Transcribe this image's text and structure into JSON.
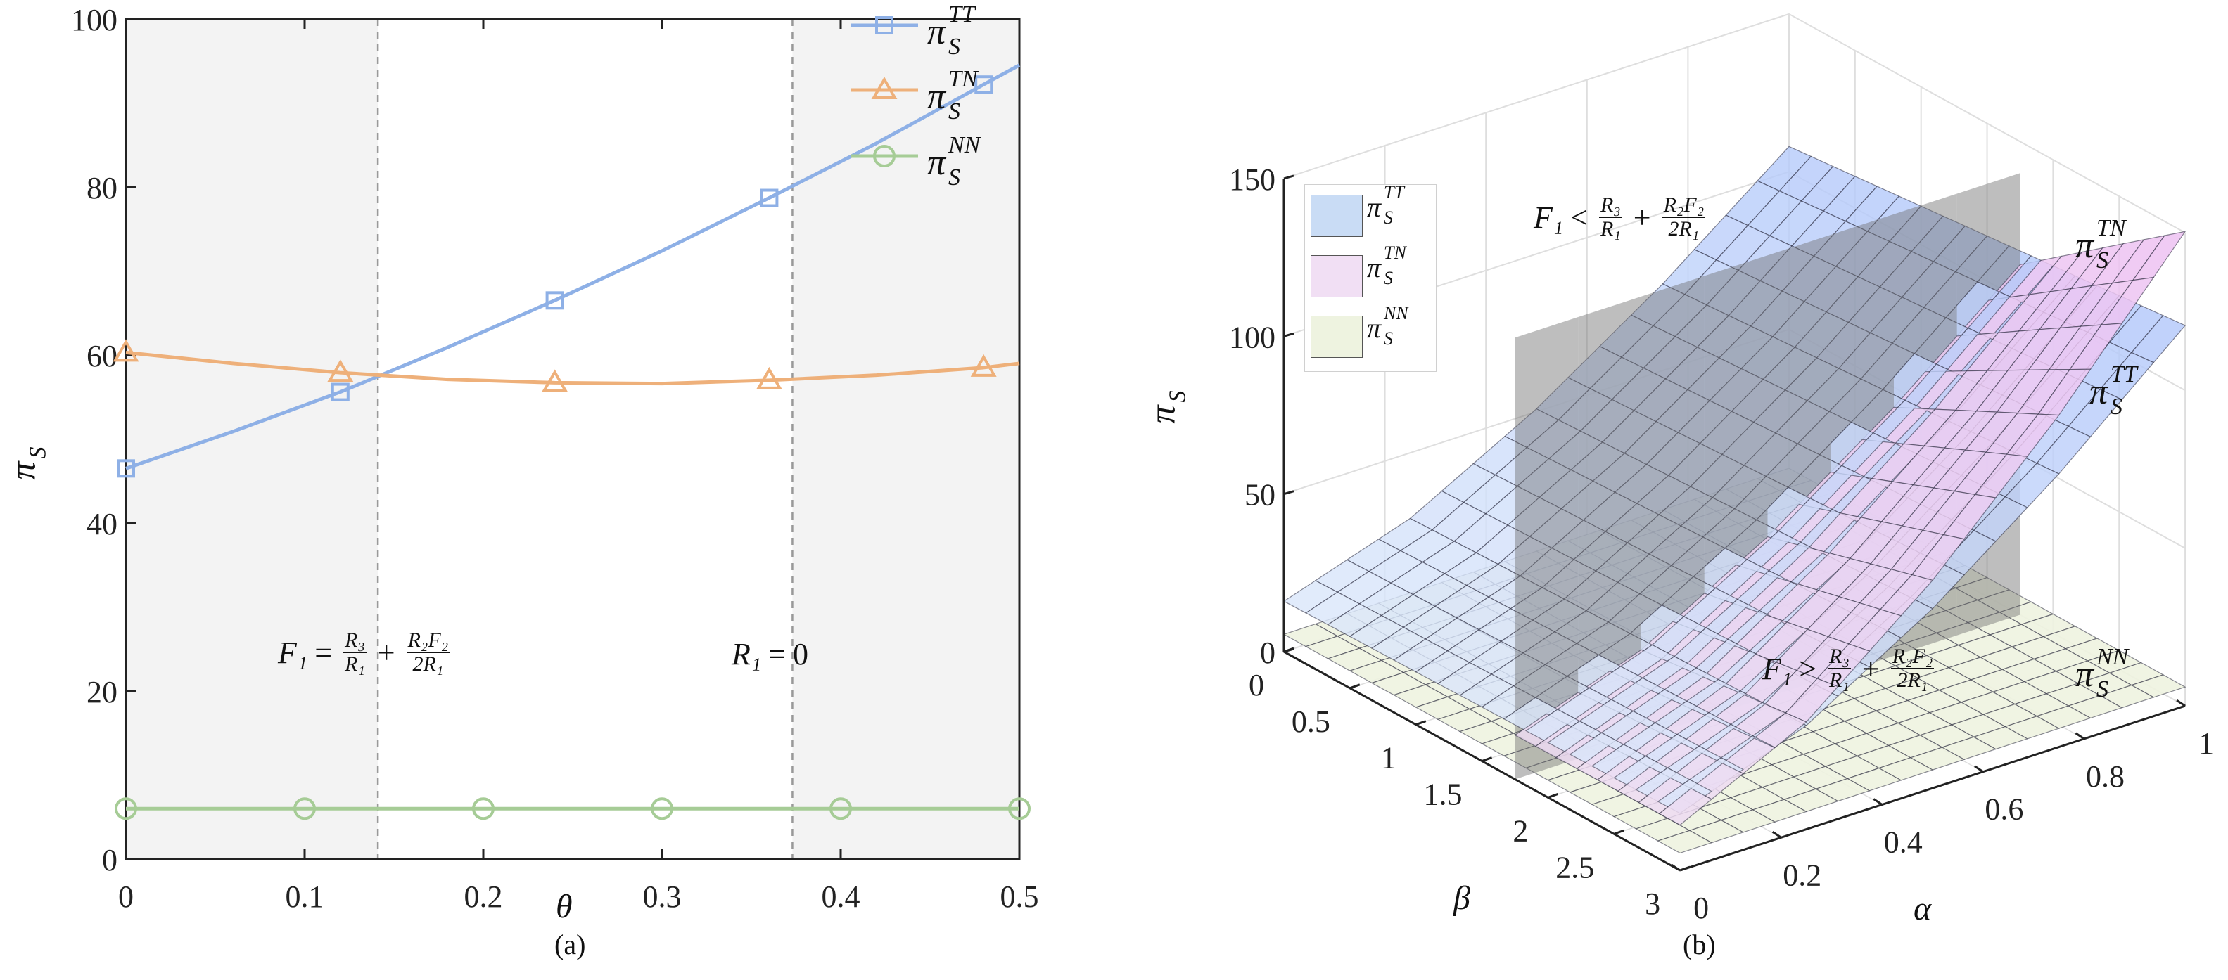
{
  "chart_data": [
    {
      "type": "line",
      "panel_label": "(a)",
      "xlabel": "θ",
      "ylabel": {
        "base": "π",
        "sub": "S"
      },
      "xlim": [
        0,
        0.5
      ],
      "ylim": [
        0,
        100
      ],
      "xticks": [
        "0",
        "0.1",
        "0.2",
        "0.3",
        "0.4",
        "0.5"
      ],
      "yticks": [
        "0",
        "20",
        "40",
        "60",
        "80",
        "100"
      ],
      "grid": false,
      "legend_position": "top-right",
      "shaded_regions": [
        [
          0,
          0.141
        ],
        [
          0.373,
          0.5
        ]
      ],
      "shade_color": "#f3f3f3",
      "vlines": [
        0.141,
        0.373
      ],
      "series": [
        {
          "name": {
            "base": "π",
            "sub": "S",
            "sup": "TT"
          },
          "color": "#8eb0e6",
          "marker": "square",
          "x": [
            0,
            0.06,
            0.12,
            0.18,
            0.24,
            0.3,
            0.36,
            0.42,
            0.48,
            0.5
          ],
          "y": [
            46.5,
            50.9,
            55.6,
            60.9,
            66.5,
            72.4,
            78.7,
            85.2,
            92.2,
            94.5
          ],
          "marker_x": [
            0,
            0.12,
            0.24,
            0.36,
            0.48
          ]
        },
        {
          "name": {
            "base": "π",
            "sub": "S",
            "sup": "TN"
          },
          "color": "#eeb07a",
          "marker": "triangle",
          "x": [
            0,
            0.06,
            0.12,
            0.18,
            0.24,
            0.3,
            0.36,
            0.42,
            0.48,
            0.5
          ],
          "y": [
            60.3,
            59.0,
            57.9,
            57.1,
            56.7,
            56.6,
            57.0,
            57.6,
            58.5,
            59.0
          ],
          "marker_x": [
            0,
            0.12,
            0.24,
            0.36,
            0.48
          ]
        },
        {
          "name": {
            "base": "π",
            "sub": "S",
            "sup": "NN"
          },
          "color": "#a6cc96",
          "marker": "circle",
          "x": [
            0,
            0.1,
            0.2,
            0.3,
            0.4,
            0.5
          ],
          "y": [
            6,
            6,
            6,
            6,
            6,
            6
          ],
          "marker_x": [
            0,
            0.1,
            0.2,
            0.3,
            0.4,
            0.5
          ]
        }
      ],
      "annotations": {
        "boundary": {
          "lhs": "F₁",
          "op": "=",
          "f1_num": "R₃",
          "f1_den": "R₁",
          "plus": "+",
          "f2_num": "R₂F₂",
          "f2_den": "2R₁"
        },
        "r1_zero": {
          "lhs": "R₁",
          "op": "=",
          "rhs": "0"
        }
      }
    },
    {
      "type": "surface3d",
      "panel_label": "(b)",
      "xlabel": "α",
      "ylabel": "β",
      "zlabel": {
        "base": "π",
        "sub": "S"
      },
      "alpha_lim": [
        0,
        1
      ],
      "beta_lim": [
        0,
        3
      ],
      "zlim": [
        0,
        150
      ],
      "alpha_ticks": [
        "0",
        "0.2",
        "0.4",
        "0.6",
        "0.8",
        "1"
      ],
      "beta_ticks": [
        "0",
        "0.5",
        "1",
        "1.5",
        "2",
        "2.5",
        "3"
      ],
      "z_ticks": [
        "0",
        "50",
        "100",
        "150"
      ],
      "grid": true,
      "legend_position": "top-left",
      "alpha_grid": [
        0,
        0.25,
        0.5,
        0.75,
        1
      ],
      "boundary_plane_beta": 1.75,
      "surfaces": [
        {
          "name": {
            "base": "π",
            "sub": "S",
            "sup": "TT"
          },
          "color": "#a9c6ef",
          "beta": [
            0,
            0.5,
            1,
            1.5,
            2,
            2.5,
            3
          ],
          "z": [
            [
              16,
              29.2,
              50.9,
              77.5,
              108
            ],
            [
              16.4,
              29.9,
              51.9,
              79.0,
              110.1
            ],
            [
              16.7,
              30.4,
              52.9,
              80.5,
              112.2
            ],
            [
              17.1,
              31.0,
              53.9,
              82.0,
              114.3
            ],
            [
              17.4,
              31.7,
              54.9,
              83.5,
              116.4
            ],
            [
              17.8,
              32.3,
              55.9,
              85.1,
              118.5
            ],
            [
              18.1,
              32.9,
              56.9,
              86.6,
              120.6
            ]
          ]
        },
        {
          "name": {
            "base": "π",
            "sub": "S",
            "sup": "TN"
          },
          "color": "#ecd0f0",
          "beta": [
            1.75,
            2,
            2.5,
            3
          ],
          "z": [
            [
              14,
              28.0,
              50.8,
              78.8,
              111
            ],
            [
              14.1,
              29.2,
              53.8,
              84.1,
              118.9
            ],
            [
              14.3,
              31.6,
              59.9,
              94.7,
              134.7
            ],
            [
              14.4,
              34.0,
              65.9,
              105.2,
              150.4
            ]
          ]
        },
        {
          "name": {
            "base": "π",
            "sub": "S",
            "sup": "NN"
          },
          "color": "#eef3e0",
          "beta": [
            0,
            0.5,
            1,
            1.5,
            2,
            2.5,
            3
          ],
          "z": [
            [
              5.5,
              5.6,
              5.8,
              5.9,
              6.0
            ],
            [
              5.5,
              5.6,
              5.8,
              5.9,
              6.0
            ],
            [
              5.5,
              5.6,
              5.8,
              5.9,
              6.0
            ],
            [
              5.5,
              5.6,
              5.8,
              5.9,
              6.0
            ],
            [
              5.5,
              5.6,
              5.8,
              5.9,
              6.0
            ],
            [
              5.5,
              5.6,
              5.8,
              5.9,
              6.0
            ],
            [
              5.5,
              5.6,
              5.8,
              5.9,
              6.0
            ]
          ]
        }
      ],
      "annotations": {
        "upper": {
          "lhs": "F₁",
          "op": "<",
          "f1_num": "R₃",
          "f1_den": "R₁",
          "plus": "+",
          "f2_num": "R₂F₂",
          "f2_den": "2R₁"
        },
        "lower": {
          "lhs": "F₁",
          "op": ">",
          "f1_num": "R₃",
          "f1_den": "R₁",
          "plus": "+",
          "f2_num": "R₂F₂",
          "f2_den": "2R₁"
        }
      }
    }
  ]
}
